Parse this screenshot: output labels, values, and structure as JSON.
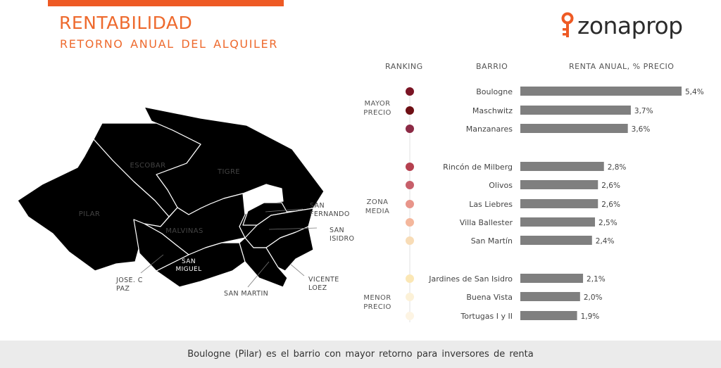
{
  "header": {
    "title": "RENTABILIDAD",
    "subtitle": "RETORNO ANUAL DEL ALQUILER"
  },
  "brand": {
    "name": "zonaprop",
    "icon": "key-icon",
    "color": "#ee5a24"
  },
  "columns": {
    "ranking": "RANKING",
    "barrio": "BARRIO",
    "renta": "RENTA ANUAL, % PRECIO"
  },
  "groups": {
    "mayor": [
      "MAYOR",
      "PRECIO"
    ],
    "media": [
      "ZONA",
      "MEDIA"
    ],
    "menor": [
      "MENOR",
      "PRECIO"
    ]
  },
  "map": {
    "regions": [
      {
        "name": "TIGRE",
        "color": "#f7d3c3"
      },
      {
        "name": "ESCOBAR",
        "color": "#ef9f82"
      },
      {
        "name": "PILAR",
        "color": "#ea8262"
      },
      {
        "name": "MALVINAS",
        "color": "#fbeadf"
      },
      {
        "name": "SAN MIGUEL",
        "color": "#ec7d58"
      },
      {
        "name": "JOSE. C PAZ",
        "color": "#e43d18"
      },
      {
        "name": "SAN FERNANDO",
        "color": "#fcf0e5"
      },
      {
        "name": "SAN ISIDRO",
        "color": "#f2b79f"
      },
      {
        "name": "SAN MARTIN",
        "color": "#e85a30"
      },
      {
        "name": "VICENTE LOEZ",
        "color": "#e2351b"
      }
    ]
  },
  "chart_data": {
    "type": "bar",
    "orientation": "horizontal",
    "ylabel": "RENTA ANUAL, % PRECIO",
    "categories": [
      "Boulogne",
      "Maschwitz",
      "Manzanares",
      "Rincón de Milberg",
      "Olivos",
      "Las Liebres",
      "Villa Ballester",
      "San Martín",
      "Jardines de San Isidro",
      "Buena Vista",
      "Tortugas I y II"
    ],
    "values": [
      5.4,
      3.7,
      3.6,
      2.8,
      2.6,
      2.6,
      2.5,
      2.4,
      2.1,
      2.0,
      1.9
    ],
    "value_labels": [
      "5,4%",
      "3,7%",
      "3,6%",
      "2,8%",
      "2,6%",
      "2,6%",
      "2,5%",
      "2,4%",
      "2,1%",
      "2,0%",
      "1,9%"
    ],
    "group_index": [
      0,
      0,
      0,
      1,
      1,
      1,
      1,
      1,
      2,
      2,
      2
    ],
    "xlim": [
      0,
      5.4
    ],
    "bar_color": "#7f7f7f",
    "ranking_colors": [
      "#7a1424",
      "#6e0f14",
      "#8c2a45",
      "#b5404f",
      "#c75f6a",
      "#e8958a",
      "#f4b79c",
      "#f8dcb6",
      "#fbe7b5",
      "#fcf1d7",
      "#fdf4e3"
    ]
  },
  "footer": {
    "text": "Boulogne  (Pilar)  es el barrio con mayor retorno para inversores de renta"
  }
}
